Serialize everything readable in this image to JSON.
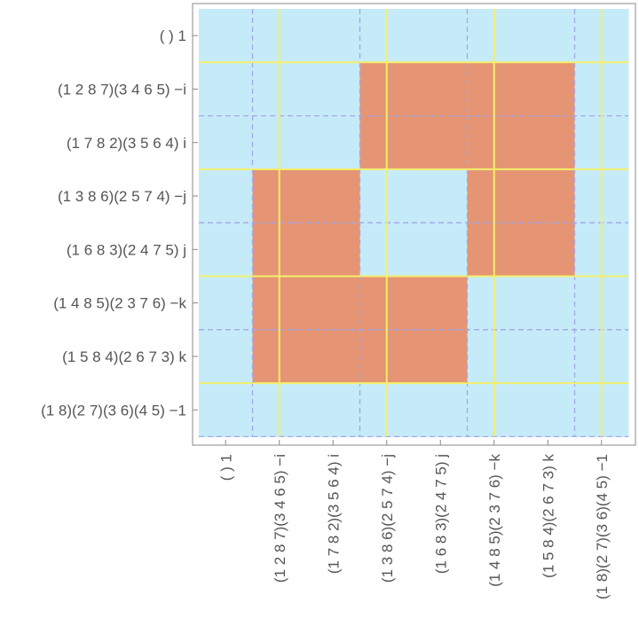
{
  "chart_data": {
    "type": "heatmap",
    "title": "",
    "xlabel": "",
    "ylabel": "",
    "row_labels": [
      "( )   1",
      "(1 2 8 7)(3 4 6 5)   −i",
      "(1 7 8 2)(3 5 6 4)   i",
      "(1 3 8 6)(2 5 7 4)   −j",
      "(1 6 8 3)(2 4 7 5)   j",
      "(1 4 8 5)(2 3 7 6)   −k",
      "(1 5 8 4)(2 6 7 3)   k",
      "(1 8)(2 7)(3 6)(4 5)   −1"
    ],
    "col_labels": [
      "( )   1",
      "(1 2 8 7)(3 4 6 5)   −i",
      "(1 7 8 2)(3 5 6 4)   i",
      "(1 3 8 6)(2 5 7 4)   −j",
      "(1 6 8 3)(2 4 7 5)   j",
      "(1 4 8 5)(2 3 7 6)   −k",
      "(1 5 8 4)(2 6 7 3)   k",
      "(1 8)(2 7)(3 6)(4 5)   −1"
    ],
    "values": [
      [
        0,
        0,
        0,
        0,
        0,
        0,
        0,
        0
      ],
      [
        0,
        0,
        0,
        1,
        1,
        1,
        1,
        0
      ],
      [
        0,
        0,
        0,
        1,
        1,
        1,
        1,
        0
      ],
      [
        0,
        1,
        1,
        0,
        0,
        1,
        1,
        0
      ],
      [
        0,
        1,
        1,
        0,
        0,
        1,
        1,
        0
      ],
      [
        0,
        1,
        1,
        1,
        1,
        0,
        0,
        0
      ],
      [
        0,
        1,
        1,
        1,
        1,
        0,
        0,
        0
      ],
      [
        0,
        0,
        0,
        0,
        0,
        0,
        0,
        0
      ]
    ],
    "colors": {
      "low": "#c6ebf8",
      "high": "#e59573",
      "block_lines": "#f3ef6b",
      "cell_lines": "#a3a6ea",
      "frame": "#888888"
    }
  }
}
